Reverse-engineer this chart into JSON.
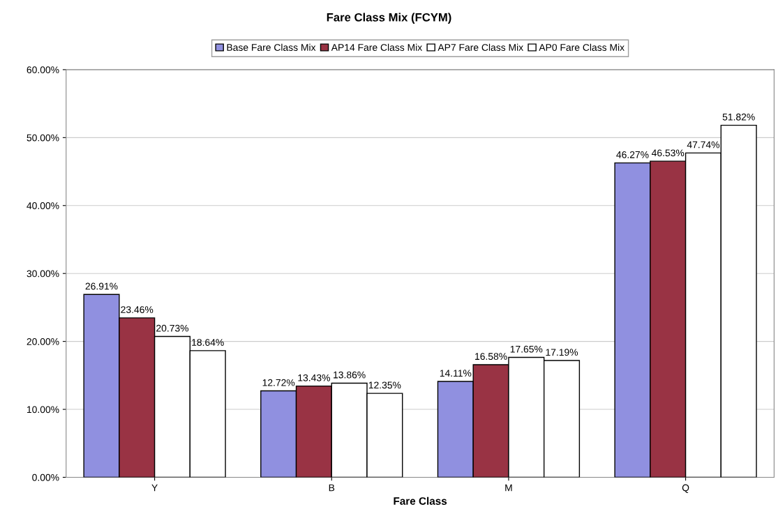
{
  "chart_data": {
    "type": "bar",
    "title": "Fare Class Mix (FCYM)",
    "xlabel": "Fare Class",
    "categories": [
      "Y",
      "B",
      "M",
      "Q"
    ],
    "series": [
      {
        "name": "Base Fare Class Mix",
        "color": "#9090e0",
        "values": [
          26.91,
          12.72,
          14.11,
          46.27
        ],
        "value_labels": [
          "26.91%",
          "12.72%",
          "14.11%",
          "46.27%"
        ]
      },
      {
        "name": "AP14 Fare Class Mix",
        "color": "#993344",
        "values": [
          23.46,
          13.43,
          16.58,
          46.53
        ],
        "value_labels": [
          "23.46%",
          "13.43%",
          "16.58%",
          "46.53%"
        ]
      },
      {
        "name": "AP7 Fare Class Mix",
        "color": "#ffffff",
        "values": [
          20.73,
          13.86,
          17.65,
          47.74
        ],
        "value_labels": [
          "20.73%",
          "13.86%",
          "17.65%",
          "47.74%"
        ]
      },
      {
        "name": "AP0 Fare Class Mix",
        "color": "#ffffff",
        "values": [
          18.64,
          12.35,
          17.19,
          51.82
        ],
        "value_labels": [
          "18.64%",
          "12.35%",
          "17.19%",
          "51.82%"
        ]
      }
    ],
    "ylim": [
      0,
      60
    ],
    "yticks": [
      {
        "value": 0,
        "label": "0.00%"
      },
      {
        "value": 10,
        "label": "10.00%"
      },
      {
        "value": 20,
        "label": "20.00%"
      },
      {
        "value": 30,
        "label": "30.00%"
      },
      {
        "value": 40,
        "label": "40.00%"
      },
      {
        "value": 50,
        "label": "50.00%"
      },
      {
        "value": 60,
        "label": "60.00%"
      }
    ],
    "grid": "y",
    "legend": "top"
  }
}
